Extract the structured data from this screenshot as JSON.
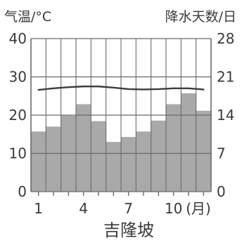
{
  "chart_data": {
    "type": "bar",
    "place_name": "吉隆坡",
    "left_axis_label": "气温/°C",
    "right_axis_label": "降水天数/日",
    "x_axis_unit": "(月)",
    "months": [
      1,
      2,
      3,
      4,
      5,
      6,
      7,
      8,
      9,
      10,
      11,
      12
    ],
    "x_tick_labels": [
      "1",
      "4",
      "7",
      "10"
    ],
    "left_ticks": [
      "0",
      "10",
      "20",
      "30",
      "40"
    ],
    "right_ticks": [
      "0",
      "7",
      "14",
      "21",
      "28"
    ],
    "left_ylim": [
      0,
      40
    ],
    "right_ylim": [
      0,
      28
    ],
    "series": [
      {
        "kind": "bar",
        "axis": "right",
        "values": [
          11,
          11.9,
          13.9,
          16,
          12.9,
          9.1,
          10,
          11,
          13,
          16,
          18,
          14.8
        ]
      },
      {
        "kind": "line",
        "axis": "left",
        "values": [
          26.6,
          27,
          27.3,
          27.5,
          27.5,
          27.2,
          26.8,
          26.7,
          26.8,
          27,
          27,
          26.7
        ]
      }
    ],
    "grid": true,
    "colors": {
      "bar": "#a9a9a9",
      "line": "#3c3c3c",
      "grid": "#6a6a6a",
      "text": "#3a3a3a"
    }
  }
}
